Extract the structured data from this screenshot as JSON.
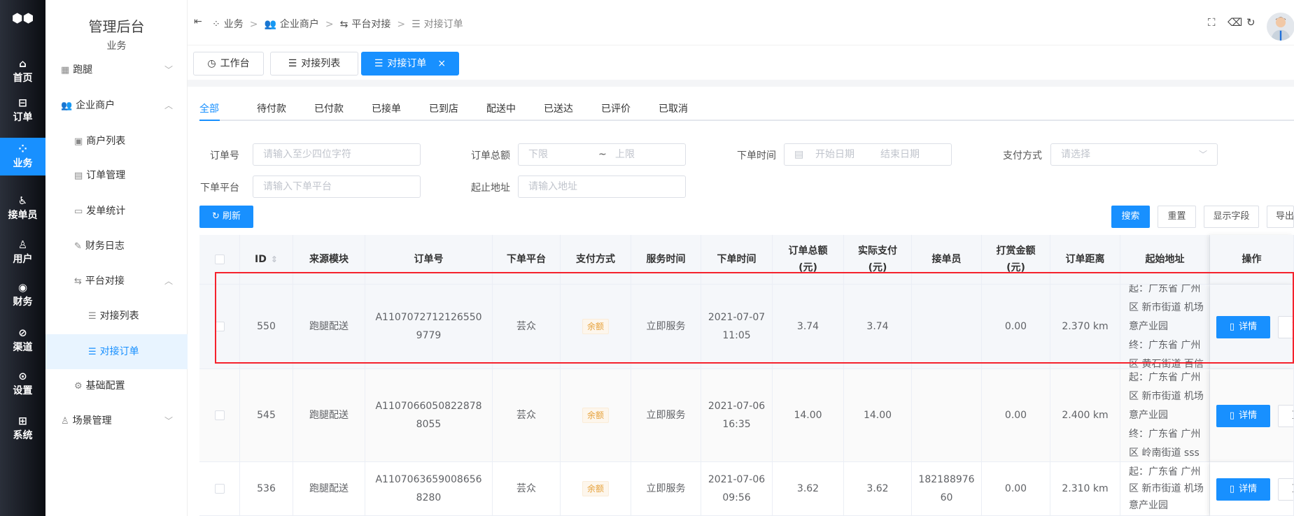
{
  "rail": {
    "items": [
      {
        "icon": "home-icon",
        "glyph": "⌂",
        "label": "首页"
      },
      {
        "icon": "order-icon",
        "glyph": "⊟",
        "label": "订单"
      },
      {
        "icon": "grid-icon",
        "glyph": "⁘",
        "label": "业务",
        "active": true
      },
      {
        "icon": "bike-icon",
        "glyph": "♿",
        "label": "接单员"
      },
      {
        "icon": "user-icon",
        "glyph": "♙",
        "label": "用户"
      },
      {
        "icon": "yen-icon",
        "glyph": "◉",
        "label": "财务"
      },
      {
        "icon": "channel-icon",
        "glyph": "⊘",
        "label": "渠道"
      },
      {
        "icon": "settings-icon",
        "glyph": "⊙",
        "label": "设置"
      },
      {
        "icon": "system-icon",
        "glyph": "⊞",
        "label": "系统"
      }
    ]
  },
  "menu": {
    "title": "管理后台",
    "subtitle": "业务",
    "items": [
      {
        "label": "跑腿",
        "icon": "errand-icon",
        "glyph": "▦",
        "level": 1,
        "chevron": "﹀"
      },
      {
        "label": "企业商户",
        "icon": "users-icon",
        "glyph": "👥",
        "level": 1,
        "chevron": "︿"
      },
      {
        "label": "商户列表",
        "icon": "contact-card-icon",
        "glyph": "▣",
        "level": 2
      },
      {
        "label": "订单管理",
        "icon": "document-icon",
        "glyph": "▤",
        "level": 2
      },
      {
        "label": "发单统计",
        "icon": "chart-icon",
        "glyph": "▭",
        "level": 2
      },
      {
        "label": "财务日志",
        "icon": "edit-icon",
        "glyph": "✎",
        "level": 2
      },
      {
        "label": "平台对接",
        "icon": "swap-icon",
        "glyph": "⇆",
        "level": 2,
        "chevron": "︿"
      },
      {
        "label": "对接列表",
        "icon": "list-icon",
        "glyph": "☰",
        "level": 3
      },
      {
        "label": "对接订单",
        "icon": "lines-icon",
        "glyph": "☰",
        "level": 3,
        "active": true
      },
      {
        "label": "基础配置",
        "icon": "gear-icon",
        "glyph": "⚙",
        "level": 2
      },
      {
        "label": "场景管理",
        "icon": "person-icon",
        "glyph": "♙",
        "level": 1,
        "chevron": "﹀"
      }
    ]
  },
  "breadcrumb": [
    {
      "glyph": "⁘",
      "label": "业务"
    },
    {
      "glyph": "👥",
      "label": "企业商户"
    },
    {
      "glyph": "⇆",
      "label": "平台对接"
    },
    {
      "glyph": "☰",
      "label": "对接订单"
    }
  ],
  "tabs": [
    {
      "glyph": "◷",
      "label": "工作台"
    },
    {
      "glyph": "☰",
      "label": "对接列表"
    },
    {
      "glyph": "☰",
      "label": "对接订单",
      "active": true,
      "close": "×"
    }
  ],
  "status_tabs": [
    "全部",
    "待付款",
    "已付款",
    "已接单",
    "已到店",
    "配送中",
    "已送达",
    "已评价",
    "已取消"
  ],
  "filters": {
    "order_no": {
      "label": "订单号",
      "placeholder": "请输入至少四位字符"
    },
    "amount": {
      "label": "订单总额",
      "min": "下限",
      "sep": "~",
      "max": "上限"
    },
    "time": {
      "label": "下单时间",
      "start": "开始日期",
      "end": "结束日期"
    },
    "pay": {
      "label": "支付方式",
      "placeholder": "请选择"
    },
    "platform": {
      "label": "下单平台",
      "placeholder": "请输入下单平台"
    },
    "address": {
      "label": "起止地址",
      "placeholder": "请输入地址"
    }
  },
  "buttons": {
    "refresh": "刷新",
    "search": "搜索",
    "reset": "重置",
    "fields": "显示字段",
    "export": "导出"
  },
  "table": {
    "headers": [
      "",
      "ID",
      "来源模块",
      "订单号",
      "下单平台",
      "支付方式",
      "服务时间",
      "下单时间",
      "订单总额\n(元)",
      "实际支付\n(元)",
      "接单员",
      "打赏金额\n(元)",
      "订单距离",
      "起始地址",
      "操作"
    ],
    "detail_label": "详情",
    "more_label": "更",
    "rows": [
      {
        "id": "550",
        "source": "跑腿配送",
        "order_no": "A11070727121265509779",
        "platform": "芸众",
        "pay": "余额",
        "service": "立即服务",
        "time": "2021-07-07\n11:05",
        "total": "3.74",
        "paid": "3.74",
        "rider": "",
        "tip": "0.00",
        "distance": "2.370 km",
        "addr": [
          "起：广东省 广州",
          "区 新市街道 机场",
          "意产业园",
          "终：广东省 广州",
          "区 黄石街道 百信"
        ]
      },
      {
        "id": "545",
        "source": "跑腿配送",
        "order_no": "A11070660508228788055",
        "platform": "芸众",
        "pay": "余额",
        "service": "立即服务",
        "time": "2021-07-06\n16:35",
        "total": "14.00",
        "paid": "14.00",
        "rider": "",
        "tip": "0.00",
        "distance": "2.400 km",
        "addr": [
          "起：广东省 广州",
          "区 新市街道 机场",
          "意产业园",
          "终：广东省 广州",
          "区 岭南街道 sss"
        ]
      },
      {
        "id": "536",
        "source": "跑腿配送",
        "order_no": "A11070636590086568280",
        "platform": "芸众",
        "pay": "余额",
        "service": "立即服务",
        "time": "2021-07-06\n09:56",
        "total": "3.62",
        "paid": "3.62",
        "rider": "18218897660",
        "tip": "0.00",
        "distance": "2.310 km",
        "addr": [
          "起：广东省 广州",
          "区 新市街道 机场",
          "意产业园"
        ]
      }
    ]
  },
  "colors": {
    "primary": "#1890ff",
    "highlight_box": "#f5222d",
    "badge": "#e6a23c"
  }
}
